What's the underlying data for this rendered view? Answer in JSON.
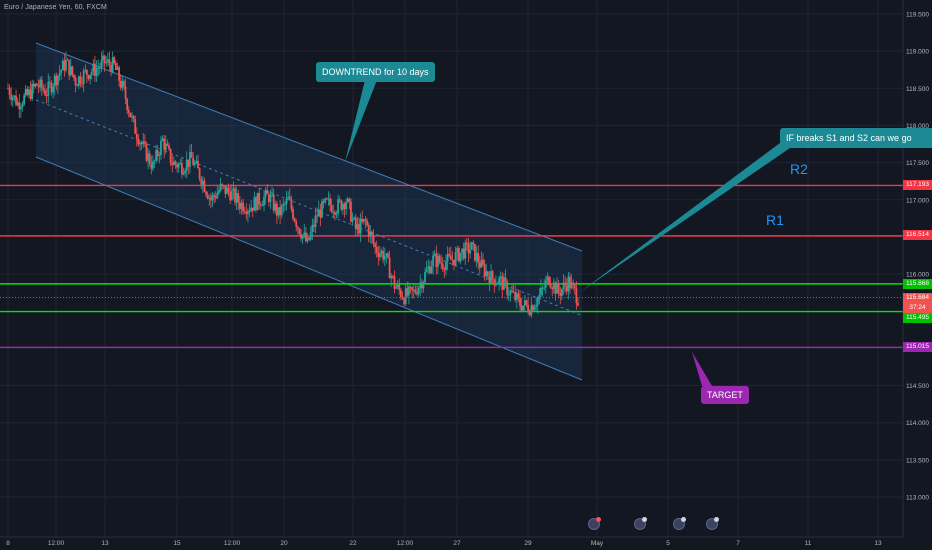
{
  "title": "Euro / Japanese Yen, 60, FXCM",
  "colors": {
    "background": "#131722",
    "grid": "#1f2433",
    "up_candle": "#26a69a",
    "down_candle": "#ef5350",
    "channel_fill": "#1e3a5c",
    "channel_line": "#3d7bb5",
    "resistance": "#f23645",
    "support": "#00e600",
    "target": "#9c27b0",
    "callout": "#1c8a94"
  },
  "annotations": {
    "downtrend": "DOWNTREND for 10 days",
    "if_breaks": "IF breaks S1 and S2 can we go",
    "target": "TARGET",
    "r2": "R2",
    "r1": "R1"
  },
  "price_tags": {
    "r2": "117.193",
    "r1": "116.514",
    "s_top": "115.868",
    "last": "115.684",
    "countdown": "37:24",
    "s_bottom": "115.495",
    "target": "115.015"
  },
  "chart_data": {
    "type": "candlestick",
    "title": "Euro / Japanese Yen, 60, FXCM",
    "xlabel": "",
    "ylabel": "",
    "x_ticks": [
      "8",
      "12:00",
      "13",
      "15",
      "12:00",
      "20",
      "22",
      "12:00",
      "27",
      "29",
      "May",
      "5",
      "7",
      "11",
      "13"
    ],
    "y_ticks": [
      "119.500",
      "119.000",
      "118.500",
      "118.000",
      "117.500",
      "117.000",
      "116.500",
      "116.000",
      "115.500",
      "115.000",
      "114.500",
      "114.000",
      "113.500",
      "113.000"
    ],
    "ylim": [
      112.7,
      119.65
    ],
    "grid": true,
    "horizontal_levels": [
      {
        "label": "R2",
        "value": 117.193,
        "color": "#f23645"
      },
      {
        "label": "R1",
        "value": 116.514,
        "color": "#f23645"
      },
      {
        "label": "S",
        "value": 115.868,
        "color": "#00e600"
      },
      {
        "label": "S",
        "value": 115.495,
        "color": "#00e600"
      },
      {
        "label": "TARGET",
        "value": 115.015,
        "color": "#9c27b0"
      }
    ],
    "channel": {
      "upper": {
        "from": [
          0,
          119.1
        ],
        "to": [
          59,
          116.1
        ]
      },
      "lower": {
        "from": [
          0,
          117.6
        ],
        "to": [
          59,
          114.6
        ]
      }
    },
    "last_price": 115.684,
    "close_path": [
      118.5,
      118.3,
      118.4,
      118.55,
      118.45,
      118.65,
      118.85,
      118.6,
      118.7,
      118.75,
      118.85,
      118.8,
      118.45,
      118.0,
      117.7,
      117.45,
      117.8,
      117.5,
      117.45,
      117.55,
      117.3,
      117.0,
      117.15,
      117.1,
      116.95,
      116.9,
      117.0,
      117.05,
      116.8,
      117.0,
      116.65,
      116.4,
      116.8,
      116.95,
      116.9,
      117.0,
      116.6,
      116.7,
      116.35,
      116.25,
      115.85,
      115.7,
      115.75,
      115.95,
      116.2,
      116.15,
      116.2,
      116.3,
      116.35,
      116.1,
      115.95,
      115.9,
      115.75,
      115.6,
      115.55,
      115.7,
      115.95,
      115.75,
      115.9,
      115.68
    ],
    "events": [
      "earnings",
      "dividend",
      "dividend",
      "dividend"
    ]
  }
}
